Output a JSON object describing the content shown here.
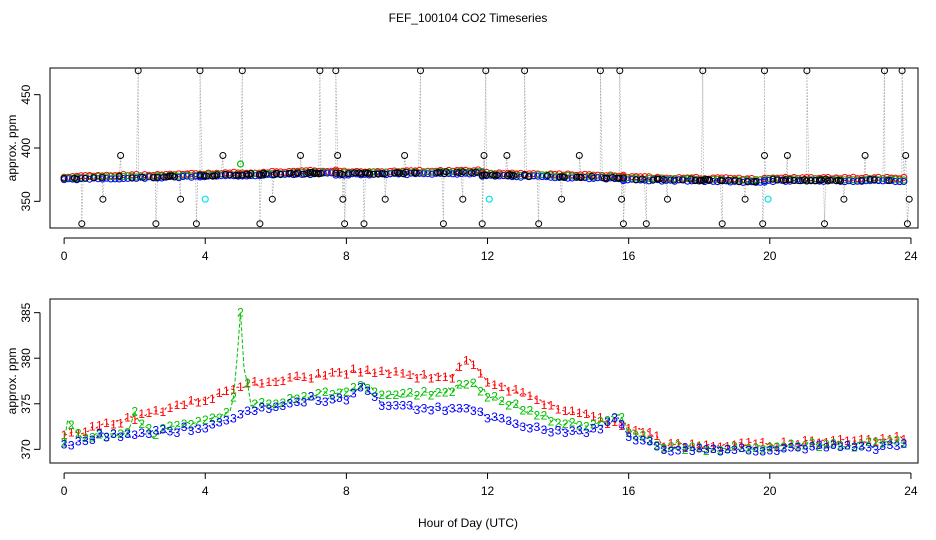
{
  "figure": {
    "title": "FEF_100104  CO2 Timeseries",
    "xlabel": "Hour of Day (UTC)"
  },
  "colors": {
    "series1": "#ff0000",
    "series2": "#00c000",
    "series3": "#0000ff",
    "cyan": "#00e5ee",
    "black": "#000000",
    "grey": "#a0a0a0"
  },
  "chart_data": [
    {
      "type": "scatter",
      "panel": "top",
      "title": "FEF_100104  CO2 Timeseries",
      "ylabel": "approx. ppm",
      "xlim": [
        -0.4,
        24.2
      ],
      "ylim": [
        325,
        475
      ],
      "xticks": [
        "0",
        "4",
        "8",
        "12",
        "16",
        "20",
        "24"
      ],
      "yticks": [
        "350",
        "400",
        "450"
      ],
      "baseline_segments": [
        {
          "from": 0.0,
          "to": 3.85,
          "start": 371.5,
          "end": 374
        },
        {
          "from": 3.85,
          "to": 7.7,
          "start": 374,
          "end": 377
        },
        {
          "from": 7.7,
          "to": 11.85,
          "start": 376,
          "end": 377
        },
        {
          "from": 11.85,
          "to": 15.85,
          "start": 375,
          "end": 372
        },
        {
          "from": 15.85,
          "to": 19.85,
          "start": 371,
          "end": 369
        },
        {
          "from": 19.85,
          "to": 23.8,
          "start": 370,
          "end": 370
        }
      ],
      "outliers_high": [
        2.1,
        3.85,
        5.05,
        7.25,
        7.7,
        10.1,
        11.95,
        13.05,
        15.2,
        15.75,
        18.1,
        19.85,
        21.05,
        23.25,
        23.75
      ],
      "outliers_low": [
        0.5,
        2.6,
        3.75,
        5.55,
        7.95,
        8.5,
        10.75,
        11.85,
        13.45,
        15.85,
        16.5,
        18.65,
        19.8,
        21.55,
        23.9
      ],
      "outliers_mid": [
        {
          "x": 1.6,
          "y": 393
        },
        {
          "x": 4.5,
          "y": 393
        },
        {
          "x": 6.7,
          "y": 393
        },
        {
          "x": 7.75,
          "y": 393
        },
        {
          "x": 9.65,
          "y": 393
        },
        {
          "x": 11.9,
          "y": 393
        },
        {
          "x": 12.55,
          "y": 393
        },
        {
          "x": 14.6,
          "y": 393
        },
        {
          "x": 19.85,
          "y": 393
        },
        {
          "x": 20.5,
          "y": 393
        },
        {
          "x": 22.7,
          "y": 393
        },
        {
          "x": 23.85,
          "y": 393
        },
        {
          "x": 1.1,
          "y": 352
        },
        {
          "x": 3.3,
          "y": 352
        },
        {
          "x": 5.9,
          "y": 352
        },
        {
          "x": 7.9,
          "y": 352
        },
        {
          "x": 9.1,
          "y": 352
        },
        {
          "x": 11.3,
          "y": 352
        },
        {
          "x": 14.1,
          "y": 352
        },
        {
          "x": 15.8,
          "y": 352
        },
        {
          "x": 17.1,
          "y": 352
        },
        {
          "x": 19.3,
          "y": 352
        },
        {
          "x": 22.1,
          "y": 352
        },
        {
          "x": 23.95,
          "y": 352
        }
      ],
      "cyan_points": [
        {
          "x": 4.0,
          "y": 352
        },
        {
          "x": 12.05,
          "y": 352
        },
        {
          "x": 19.95,
          "y": 352
        }
      ],
      "green_spike": {
        "x": 5.0,
        "y": 385
      }
    },
    {
      "type": "line",
      "panel": "bottom",
      "ylabel": "approx. ppm",
      "xlim": [
        -0.4,
        24.2
      ],
      "ylim": [
        368.5,
        386.5
      ],
      "xticks": [
        "0",
        "4",
        "8",
        "12",
        "16",
        "20",
        "24"
      ],
      "yticks": [
        "370",
        "375",
        "380",
        "385"
      ],
      "series": [
        {
          "name": "1",
          "x": [
            0,
            1,
            2,
            3,
            4,
            5,
            6,
            7,
            8,
            9,
            10,
            11,
            11.5,
            12,
            13,
            14,
            15,
            16,
            16.8,
            17,
            18,
            19,
            20,
            21,
            22,
            23,
            23.8
          ],
          "values": [
            371.5,
            372.5,
            373.5,
            374.5,
            375.5,
            377,
            377.5,
            378,
            378.5,
            378.5,
            378,
            378,
            380,
            377.5,
            376,
            374.5,
            373.5,
            372.5,
            371.5,
            370.5,
            370.3,
            370.5,
            370.5,
            370.8,
            371,
            371,
            371.3
          ]
        },
        {
          "name": "2",
          "x": [
            0,
            0.1,
            0.5,
            1,
            1.8,
            2,
            2.5,
            3,
            4,
            4.7,
            4.8,
            4.9,
            5,
            5.1,
            5.3,
            6,
            7,
            8,
            8.5,
            9,
            10,
            11,
            11.5,
            12,
            13,
            14,
            15,
            15.7,
            16,
            17,
            18,
            19,
            20,
            21,
            22,
            23,
            23.8
          ],
          "values": [
            370.5,
            373,
            371.5,
            371.5,
            372,
            374,
            371.5,
            372.5,
            373,
            374,
            376,
            380,
            385,
            379,
            375,
            375,
            376,
            376.5,
            377,
            376,
            376,
            376.5,
            377.5,
            376,
            374.5,
            373,
            372.5,
            374,
            372,
            370.3,
            370,
            370,
            370.2,
            370.5,
            370.5,
            370.5,
            370.8
          ]
        },
        {
          "name": "3",
          "x": [
            0,
            0.5,
            1,
            1.5,
            2,
            3,
            4,
            4.7,
            5,
            5.5,
            6,
            7,
            8,
            8.5,
            9,
            10,
            11,
            11.5,
            12,
            13,
            14,
            15,
            15.7,
            16,
            17,
            18,
            19,
            20,
            21,
            22,
            23,
            23.8
          ],
          "values": [
            370.5,
            371,
            371.5,
            371.5,
            371.5,
            372,
            372.5,
            373,
            374,
            374.5,
            374.5,
            375.5,
            375.5,
            377,
            375,
            374.5,
            374.5,
            374.5,
            373.5,
            372.5,
            372,
            372,
            373.5,
            371.5,
            370,
            370,
            370,
            370,
            370.2,
            370.2,
            370.2,
            370.4
          ]
        }
      ]
    }
  ]
}
